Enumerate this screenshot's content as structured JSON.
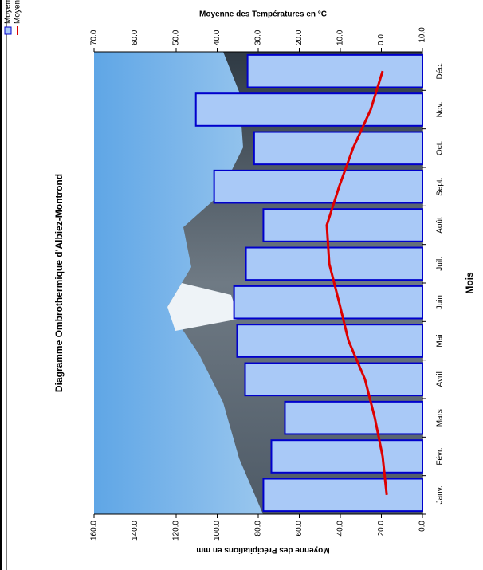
{
  "chart_data": {
    "type": "bar_line",
    "title": "Diagramme Ombrothermique d'Albiez-Montrond",
    "x_label": "Mois",
    "y_label": "Moyenne des Précipitations en mm",
    "y2_label": "Moyenne des Températures en °C",
    "categories": [
      "Janv.",
      "Févr.",
      "Mars",
      "Avril",
      "Mai",
      "Juin",
      "Juil.",
      "Août",
      "Sept.",
      "Oct.",
      "Nov.",
      "Déc."
    ],
    "series": [
      {
        "name": "Moyenne de",
        "type": "bar",
        "color": "#a9c9f7",
        "edge_color": "#0000cc",
        "values": [
          77.5,
          73.6,
          67,
          86.4,
          90.3,
          91.8,
          86,
          77.5,
          101.5,
          82,
          110.4,
          85.2
        ]
      },
      {
        "name": "Moyenne de",
        "type": "line",
        "axis": "y2",
        "color": "#dd0000",
        "values": [
          -1.3,
          -0.3,
          1.6,
          4.0,
          8.0,
          10.3,
          12.7,
          13.3,
          10.3,
          6.9,
          2.6,
          -0.3
        ]
      }
    ],
    "ylim": [
      0,
      160
    ],
    "yticks": [
      {
        "value": 0,
        "label": "0.0"
      },
      {
        "value": 20,
        "label": "20.0"
      },
      {
        "value": 40,
        "label": "40.0"
      },
      {
        "value": 60,
        "label": "60.0"
      },
      {
        "value": 80,
        "label": "80.0"
      },
      {
        "value": 100,
        "label": "100.0"
      },
      {
        "value": 120,
        "label": "120.0"
      },
      {
        "value": 140,
        "label": "140.0"
      },
      {
        "value": 160,
        "label": "160.0"
      }
    ],
    "y2lim": [
      -10,
      70
    ],
    "y2ticks": [
      {
        "value": -10,
        "label": "-10.0"
      },
      {
        "value": 0,
        "label": "0.0"
      },
      {
        "value": 10,
        "label": "10.0"
      },
      {
        "value": 20,
        "label": "20.0"
      },
      {
        "value": 30,
        "label": "30.0"
      },
      {
        "value": 40,
        "label": "40.0"
      },
      {
        "value": 50,
        "label": "50.0"
      },
      {
        "value": 60,
        "label": "60.0"
      },
      {
        "value": 70,
        "label": "70.0"
      }
    ],
    "grid": false,
    "legend": "top-right"
  }
}
